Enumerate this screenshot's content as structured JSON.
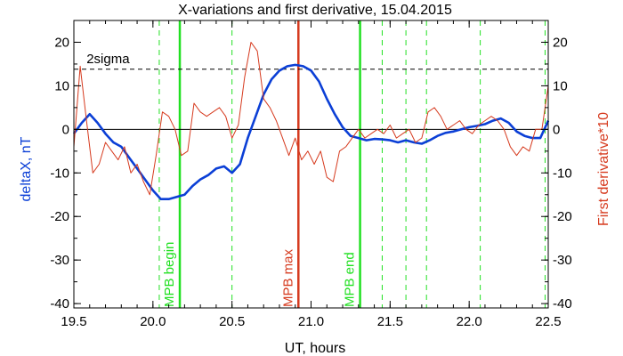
{
  "chart_data": {
    "type": "line",
    "title": "X-variations and first derivative, 15.04.2015",
    "xlabel": "UT, hours",
    "ylabel_left": "deltaX, nT",
    "ylabel_right": "First derivative*10",
    "xlim": [
      19.5,
      22.5
    ],
    "ylim": [
      -41,
      25
    ],
    "x_ticks": [
      "19.5",
      "20.0",
      "20.5",
      "21.0",
      "21.5",
      "22.0",
      "22.5"
    ],
    "y_ticks": [
      "-40",
      "-30",
      "-20",
      "-10",
      "0",
      "10",
      "20"
    ],
    "colors": {
      "deltaX": "#0b3fd6",
      "derivative": "#d63a1e",
      "marker": "#22e022",
      "mpb_max": "#d63a1e",
      "axis": "#000000"
    },
    "sigma_label": "2sigma",
    "sigma_level": 13.8,
    "series": [
      {
        "key": "deltaX",
        "x": [
          19.5,
          19.55,
          19.6,
          19.65,
          19.7,
          19.75,
          19.8,
          19.85,
          19.9,
          19.95,
          20.0,
          20.05,
          20.1,
          20.15,
          20.2,
          20.25,
          20.3,
          20.35,
          20.4,
          20.45,
          20.5,
          20.55,
          20.6,
          20.65,
          20.7,
          20.75,
          20.8,
          20.85,
          20.9,
          20.95,
          21.0,
          21.05,
          21.1,
          21.15,
          21.2,
          21.25,
          21.3,
          21.35,
          21.4,
          21.45,
          21.5,
          21.55,
          21.6,
          21.65,
          21.7,
          21.75,
          21.8,
          21.85,
          21.9,
          21.95,
          22.0,
          22.05,
          22.1,
          22.15,
          22.2,
          22.25,
          22.3,
          22.35,
          22.4,
          22.45,
          22.5
        ],
        "y": [
          -1,
          1.5,
          3.5,
          1.5,
          -1,
          -3,
          -4,
          -6.5,
          -9,
          -11.5,
          -14,
          -16,
          -16,
          -15.5,
          -15,
          -13,
          -11.5,
          -10.5,
          -9,
          -8.5,
          -10,
          -8,
          -2,
          3,
          8,
          11.5,
          13.5,
          14.5,
          14.8,
          14.5,
          13.5,
          11,
          7,
          3.5,
          0.5,
          -1.5,
          -2,
          -2.5,
          -2.2,
          -2.3,
          -2.5,
          -3,
          -2.5,
          -3,
          -3.3,
          -2.5,
          -1.5,
          -0.8,
          -0.5,
          0,
          0.5,
          0.8,
          1.2,
          2,
          2.5,
          1.5,
          -0.5,
          -1.5,
          -2,
          -2,
          2
        ]
      },
      {
        "key": "derivative",
        "x": [
          19.5,
          19.54,
          19.58,
          19.62,
          19.66,
          19.7,
          19.74,
          19.78,
          19.82,
          19.86,
          19.9,
          19.94,
          19.98,
          20.02,
          20.06,
          20.1,
          20.14,
          20.18,
          20.22,
          20.26,
          20.3,
          20.34,
          20.38,
          20.42,
          20.46,
          20.5,
          20.54,
          20.58,
          20.62,
          20.66,
          20.7,
          20.74,
          20.78,
          20.82,
          20.86,
          20.9,
          20.94,
          20.98,
          21.02,
          21.06,
          21.1,
          21.14,
          21.18,
          21.22,
          21.26,
          21.3,
          21.34,
          21.38,
          21.42,
          21.46,
          21.5,
          21.54,
          21.58,
          21.62,
          21.66,
          21.7,
          21.74,
          21.78,
          21.82,
          21.86,
          21.9,
          21.94,
          21.98,
          22.02,
          22.06,
          22.1,
          22.14,
          22.18,
          22.22,
          22.26,
          22.3,
          22.34,
          22.38,
          22.42,
          22.46,
          22.5
        ],
        "y": [
          -4,
          14.5,
          2,
          -10,
          -8,
          -3,
          -5,
          -7,
          -4,
          -10,
          -8,
          -12,
          -15,
          -6,
          4,
          3,
          0,
          -6,
          -5,
          6,
          4,
          3,
          4,
          5,
          3,
          -2,
          1,
          12,
          20,
          18,
          7,
          5,
          2,
          -2,
          -6,
          -2,
          -7,
          -5,
          -8,
          -5,
          -11,
          -12,
          -5,
          -4,
          -2,
          0,
          -2,
          -1,
          0,
          -1,
          1,
          -2,
          -1,
          0,
          -3,
          -2,
          4,
          5,
          3,
          0,
          1,
          2,
          0,
          -1,
          1,
          2,
          3,
          2,
          0,
          -4,
          -6,
          -4,
          -5,
          0,
          0,
          10
        ]
      }
    ],
    "vlines": [
      {
        "kind": "dash",
        "x": 20.04
      },
      {
        "kind": "dash",
        "x": 20.5
      },
      {
        "kind": "dash",
        "x": 21.45
      },
      {
        "kind": "dash",
        "x": 21.6
      },
      {
        "kind": "dash",
        "x": 21.73
      },
      {
        "kind": "dash",
        "x": 22.07
      },
      {
        "kind": "dash",
        "x": 22.48
      },
      {
        "kind": "solid",
        "x": 20.17,
        "label": "MPB begin",
        "color": "marker"
      },
      {
        "kind": "solid",
        "x": 20.92,
        "label": "MPB max",
        "color": "mpb_max"
      },
      {
        "kind": "solid",
        "x": 21.31,
        "label": "MPB end",
        "color": "marker"
      }
    ]
  }
}
